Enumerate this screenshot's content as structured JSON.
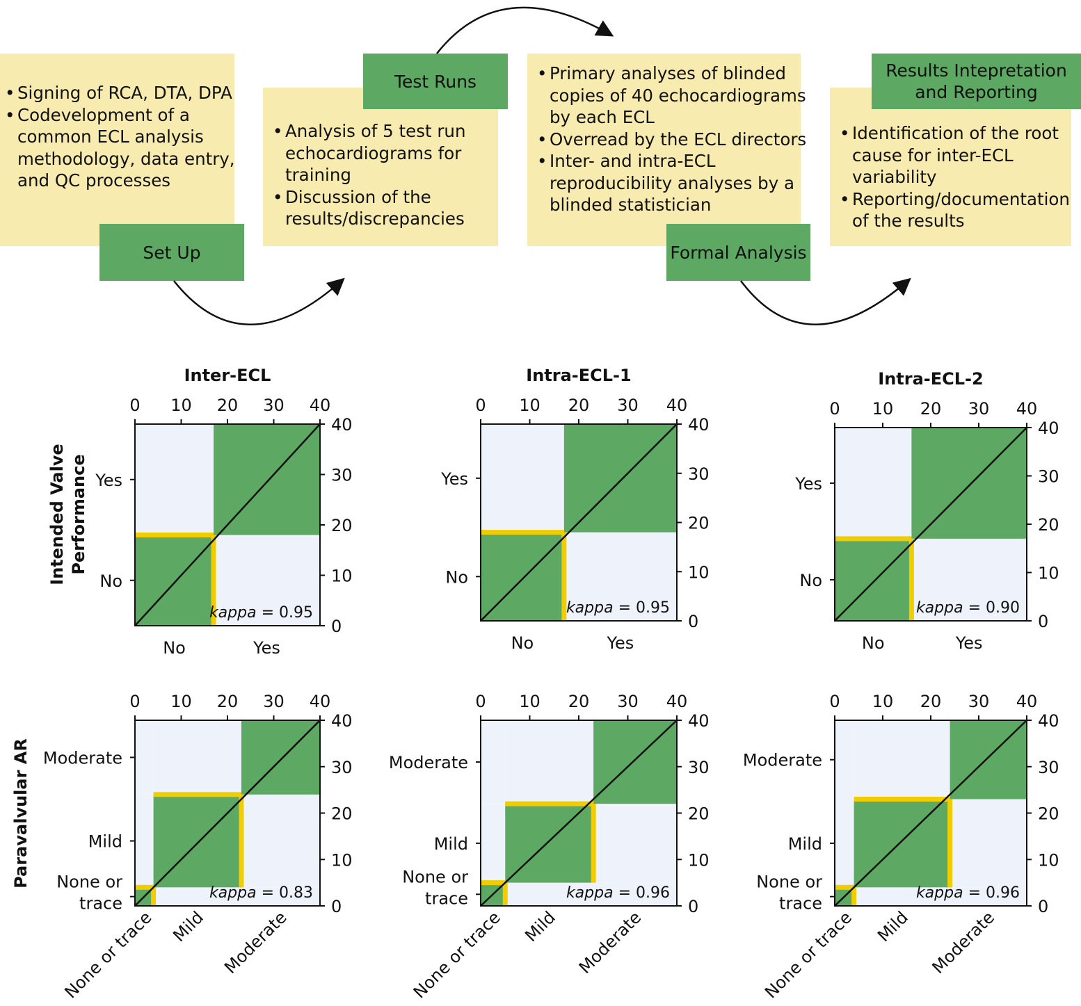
{
  "workflow": {
    "setup": {
      "label": "Set Up",
      "bullets": [
        "Signing of RCA, DTA, DPA",
        "Codevelopment of a common ECL analysis methodology, data entry, and QC processes"
      ]
    },
    "test_runs": {
      "label": "Test Runs",
      "bullets": [
        "Analysis of 5 test run echocardiograms for training",
        "Discussion of the results/discrepancies"
      ]
    },
    "formal_analysis": {
      "label": "Formal Analysis",
      "bullets": [
        "Primary analyses of blinded copies of 40 echocardiograms by each ECL",
        "Overread by the ECL directors",
        "Inter- and intra-ECL reproducibility analyses by a blinded statistician"
      ]
    },
    "results": {
      "label": "Results Intepretation\nand Reporting",
      "bullets": [
        "Identification of the root cause for inter-ECL variability",
        "Reporting/documentation of the results"
      ]
    }
  },
  "colors": {
    "agree": "#5da862",
    "disagree": "#eef3fb",
    "boundary": "#f0cd00",
    "box": "#f8ebb0"
  },
  "chart_data": [
    {
      "type": "heatmap",
      "title": "Inter-ECL",
      "ylabel": "Intended Valve Performance",
      "categories": [
        "No",
        "Yes"
      ],
      "axis_ticks": [
        0,
        10,
        20,
        30,
        40
      ],
      "x_boundaries": [
        17
      ],
      "y_boundaries": [
        18
      ],
      "kappa_label": "kappa",
      "kappa_value": "= 0.95"
    },
    {
      "type": "heatmap",
      "title": "Intra-ECL-1",
      "ylabel": "",
      "categories": [
        "No",
        "Yes"
      ],
      "axis_ticks": [
        0,
        10,
        20,
        30,
        40
      ],
      "x_boundaries": [
        17
      ],
      "y_boundaries": [
        18
      ],
      "kappa_label": "kappa",
      "kappa_value": "= 0.95"
    },
    {
      "type": "heatmap",
      "title": "Intra-ECL-2",
      "ylabel": "",
      "categories": [
        "No",
        "Yes"
      ],
      "axis_ticks": [
        0,
        10,
        20,
        30,
        40
      ],
      "x_boundaries": [
        16
      ],
      "y_boundaries": [
        17
      ],
      "kappa_label": "kappa",
      "kappa_value": "= 0.90"
    },
    {
      "type": "heatmap",
      "title": "",
      "ylabel": "Paravalvular AR",
      "categories": [
        "None or trace",
        "Mild",
        "Moderate"
      ],
      "axis_ticks": [
        0,
        10,
        20,
        30,
        40
      ],
      "x_boundaries": [
        4,
        23
      ],
      "y_boundaries": [
        4,
        24
      ],
      "kappa_label": "kappa",
      "kappa_value": "= 0.83"
    },
    {
      "type": "heatmap",
      "title": "",
      "ylabel": "",
      "categories": [
        "None or trace",
        "Mild",
        "Moderate"
      ],
      "axis_ticks": [
        0,
        10,
        20,
        30,
        40
      ],
      "x_boundaries": [
        5,
        23
      ],
      "y_boundaries": [
        5,
        22
      ],
      "kappa_label": "kappa",
      "kappa_value": "= 0.96"
    },
    {
      "type": "heatmap",
      "title": "",
      "ylabel": "",
      "categories": [
        "None or trace",
        "Mild",
        "Moderate"
      ],
      "axis_ticks": [
        0,
        10,
        20,
        30,
        40
      ],
      "x_boundaries": [
        4,
        24
      ],
      "y_boundaries": [
        4,
        23
      ],
      "kappa_label": "kappa",
      "kappa_value": "= 0.96"
    }
  ]
}
